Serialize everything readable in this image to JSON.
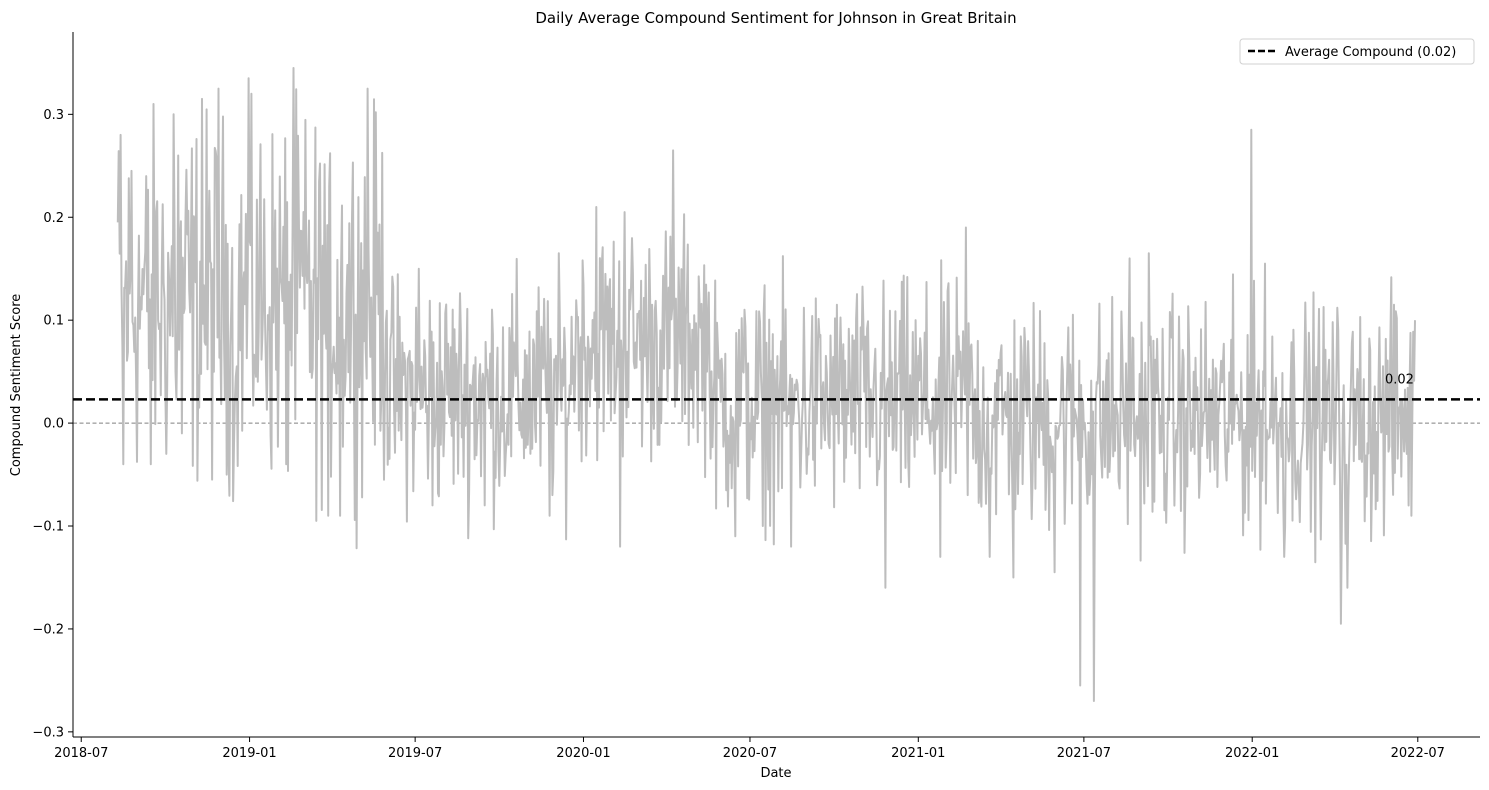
{
  "chart_data": {
    "type": "line",
    "title": "Daily Average Compound Sentiment for Johnson in Great Britain",
    "xlabel": "Date",
    "ylabel": "Compound Sentiment Score",
    "xlim": [
      "2018-06-22",
      "2022-09-07"
    ],
    "ylim": [
      -0.305,
      0.38
    ],
    "x_ticks": [
      "2018-07-01",
      "2019-01-01",
      "2019-07-01",
      "2020-01-01",
      "2020-07-01",
      "2021-01-01",
      "2021-07-01",
      "2022-01-01",
      "2022-07-01"
    ],
    "x_tick_labels": [
      "2018-07",
      "2019-01",
      "2019-07",
      "2020-01",
      "2020-07",
      "2021-01",
      "2021-07",
      "2022-01",
      "2022-07"
    ],
    "y_ticks": [
      -0.3,
      -0.2,
      -0.1,
      0.0,
      0.1,
      0.2,
      0.3
    ],
    "y_tick_labels": [
      "−0.3",
      "−0.2",
      "−0.1",
      "0.0",
      "0.1",
      "0.2",
      "0.3"
    ],
    "average_line": {
      "value": 0.023,
      "label": "Average Compound (0.02)",
      "annotation": "0.02",
      "color": "#000000",
      "style": "dashed"
    },
    "zero_line": {
      "value": 0.0,
      "color": "#808080",
      "style": "dashed"
    },
    "legend": {
      "position": "top-right",
      "entries": [
        "Average Compound (0.02)"
      ]
    },
    "grid": false,
    "series": [
      {
        "color": "#bdbdbd",
        "x_start": "2018-08-10",
        "x_end": "2022-06-28",
        "step_days": 1,
        "keypoints": [
          {
            "date": "2018-08-10",
            "value": 0.195
          },
          {
            "date": "2018-08-13",
            "value": 0.28
          },
          {
            "date": "2018-08-16",
            "value": -0.04
          },
          {
            "date": "2018-08-25",
            "value": 0.245
          },
          {
            "date": "2018-09-10",
            "value": 0.24
          },
          {
            "date": "2018-09-15",
            "value": -0.04
          },
          {
            "date": "2018-10-10",
            "value": 0.3
          },
          {
            "date": "2018-10-15",
            "value": 0.26
          },
          {
            "date": "2018-10-19",
            "value": -0.01
          },
          {
            "date": "2018-11-10",
            "value": 0.315
          },
          {
            "date": "2018-11-28",
            "value": 0.325
          },
          {
            "date": "2018-12-15",
            "value": -0.02
          },
          {
            "date": "2018-12-31",
            "value": 0.335
          },
          {
            "date": "2019-01-03",
            "value": 0.32
          },
          {
            "date": "2019-02-10",
            "value": -0.04
          },
          {
            "date": "2019-02-18",
            "value": 0.345
          },
          {
            "date": "2019-03-15",
            "value": -0.095
          },
          {
            "date": "2019-03-28",
            "value": -0.09
          },
          {
            "date": "2019-04-10",
            "value": -0.09
          },
          {
            "date": "2019-05-10",
            "value": 0.325
          },
          {
            "date": "2019-07-05",
            "value": 0.15
          },
          {
            "date": "2019-07-20",
            "value": -0.08
          },
          {
            "date": "2019-09-15",
            "value": -0.08
          },
          {
            "date": "2019-11-25",
            "value": -0.09
          },
          {
            "date": "2020-01-15",
            "value": 0.21
          },
          {
            "date": "2020-02-10",
            "value": -0.12
          },
          {
            "date": "2020-02-15",
            "value": 0.205
          },
          {
            "date": "2020-04-08",
            "value": 0.265
          },
          {
            "date": "2020-06-15",
            "value": -0.11
          },
          {
            "date": "2020-07-15",
            "value": -0.1
          },
          {
            "date": "2020-08-15",
            "value": -0.12
          },
          {
            "date": "2020-11-26",
            "value": -0.16
          },
          {
            "date": "2021-01-25",
            "value": -0.13
          },
          {
            "date": "2021-02-22",
            "value": 0.19
          },
          {
            "date": "2021-03-20",
            "value": -0.13
          },
          {
            "date": "2021-04-15",
            "value": -0.15
          },
          {
            "date": "2021-05-30",
            "value": -0.145
          },
          {
            "date": "2021-06-27",
            "value": -0.255
          },
          {
            "date": "2021-07-12",
            "value": -0.27
          },
          {
            "date": "2021-08-20",
            "value": 0.16
          },
          {
            "date": "2021-09-10",
            "value": 0.165
          },
          {
            "date": "2021-12-31",
            "value": 0.285
          },
          {
            "date": "2022-01-15",
            "value": 0.155
          },
          {
            "date": "2022-02-05",
            "value": -0.13
          },
          {
            "date": "2022-04-08",
            "value": -0.195
          },
          {
            "date": "2022-04-15",
            "value": -0.16
          },
          {
            "date": "2022-06-05",
            "value": 0.115
          },
          {
            "date": "2022-06-28",
            "value": 0.1
          }
        ]
      }
    ]
  }
}
